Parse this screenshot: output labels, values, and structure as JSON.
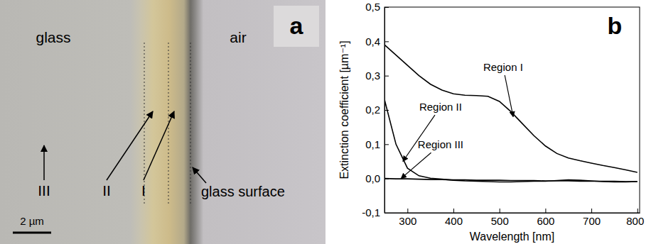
{
  "micrograph": {
    "panel_label": "a",
    "glass": "glass",
    "air": "air",
    "regions": [
      "III",
      "II",
      "I"
    ],
    "surface": "glass surface",
    "scale_bar": "2 µm"
  },
  "chart_data": {
    "type": "line",
    "panel_label": "b",
    "x_label": "Wavelength  [nm]",
    "y_label": "Extinction coefficient [µm⁻¹]",
    "x": [
      250,
      275,
      300,
      325,
      350,
      375,
      400,
      425,
      450,
      475,
      500,
      525,
      550,
      575,
      600,
      625,
      650,
      675,
      700,
      725,
      750,
      775,
      800
    ],
    "series": [
      {
        "color": "#000000",
        "values": [
          0.39,
          0.36,
          0.33,
          0.3,
          0.275,
          0.258,
          0.247,
          0.243,
          0.242,
          0.24,
          0.225,
          0.195,
          0.16,
          0.125,
          0.095,
          0.073,
          0.06,
          0.052,
          0.045,
          0.038,
          0.032,
          0.025,
          0.018
        ]
      },
      {
        "color": "#000000",
        "values": [
          0.23,
          0.1,
          0.03,
          0.008,
          0.001,
          -0.002,
          -0.005,
          -0.007,
          -0.008,
          -0.009,
          -0.01,
          -0.01,
          -0.009,
          -0.008,
          -0.008,
          -0.006,
          -0.004,
          -0.005,
          -0.007,
          -0.009,
          -0.01,
          -0.01,
          -0.009
        ]
      },
      {
        "color": "#000000",
        "values": [
          0.0,
          -0.001,
          -0.001,
          -0.002,
          -0.003,
          -0.003,
          -0.004,
          -0.004,
          -0.005,
          -0.005,
          -0.005,
          -0.006,
          -0.006,
          -0.006,
          -0.007,
          -0.007,
          -0.007,
          -0.008,
          -0.008,
          -0.008,
          -0.008,
          -0.009,
          -0.009
        ]
      }
    ],
    "xlim": [
      250,
      805
    ],
    "xticks": [
      300,
      400,
      500,
      600,
      700,
      800
    ],
    "ylim": [
      -0.1,
      0.5
    ],
    "yticks": [
      {
        "value": -0.1,
        "label": "-0,1"
      },
      {
        "value": 0.0,
        "label": "0,0"
      },
      {
        "value": 0.1,
        "label": "0,1"
      },
      {
        "value": 0.2,
        "label": "0,2"
      },
      {
        "value": 0.3,
        "label": "0,3"
      },
      {
        "value": 0.4,
        "label": "0,4"
      },
      {
        "value": 0.5,
        "label": "0,5"
      }
    ],
    "annotations": [
      {
        "text": "Region I",
        "x": 508,
        "y": 0.322,
        "arrow_x": 530,
        "arrow_y": 0.18
      },
      {
        "text": "Region II",
        "x": 372,
        "y": 0.206,
        "arrow_x": 290,
        "arrow_y": 0.05
      },
      {
        "text": "Region III",
        "x": 372,
        "y": 0.096,
        "arrow_x": 286,
        "arrow_y": 0.0
      }
    ]
  }
}
